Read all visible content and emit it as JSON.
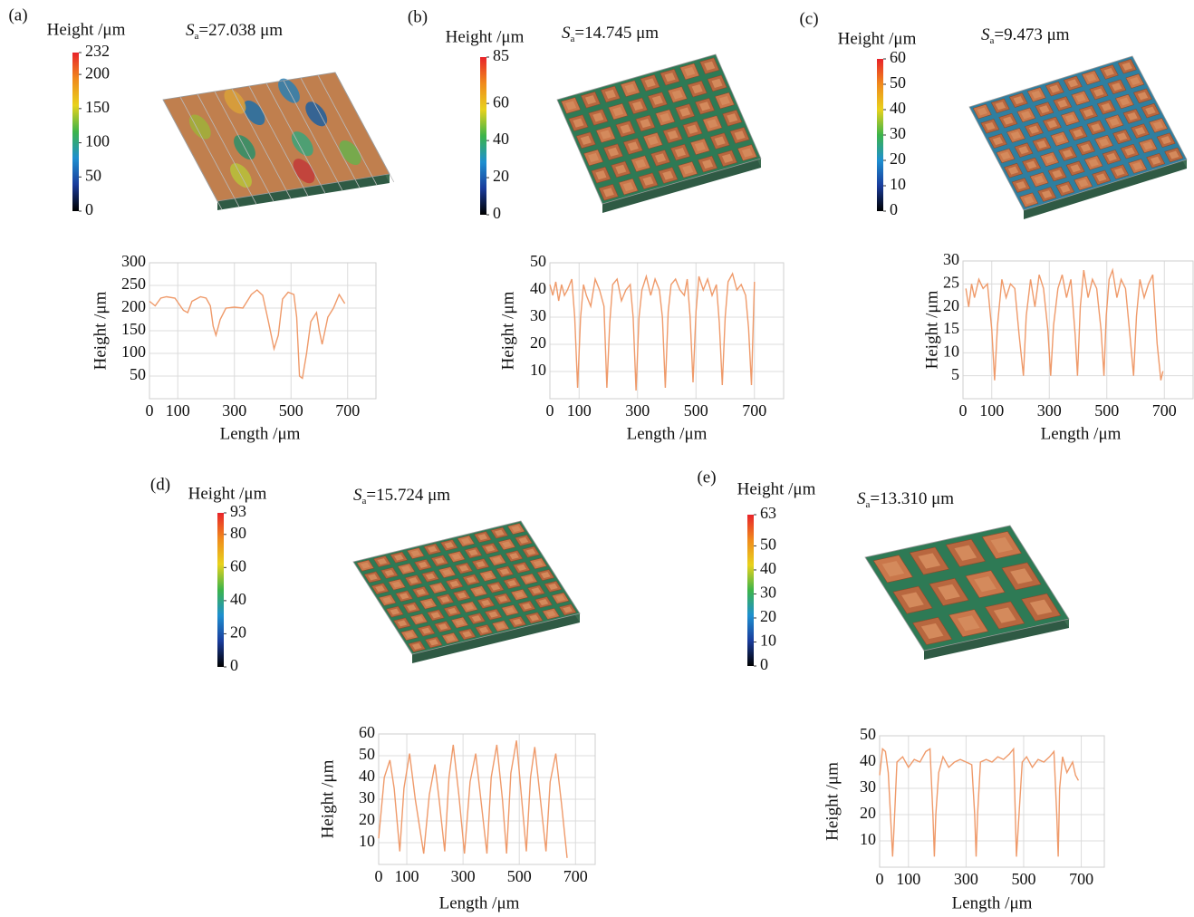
{
  "colormap": [
    "#000000",
    "#1a3c9c",
    "#1e8fd0",
    "#3cb44a",
    "#e8d21c",
    "#f08a1c",
    "#e8232a"
  ],
  "chart_data": [
    {
      "type": "line",
      "panel": "(a)",
      "surface_roughness": {
        "symbol": "S",
        "subscript": "a",
        "text": "=27.038 μm"
      },
      "colorbar": {
        "title": "Height /μm",
        "lim": [
          0,
          232
        ],
        "ticks": [
          0,
          50,
          100,
          150,
          200,
          232
        ]
      },
      "xlabel": "Length /μm",
      "ylabel": "Height /μm",
      "color": "#ef9a6a",
      "grid": true,
      "xlim": [
        0,
        800
      ],
      "ylim": [
        0,
        300
      ],
      "xticks": [
        0,
        100,
        300,
        500,
        700
      ],
      "yticks": [
        50,
        100,
        150,
        200,
        250,
        300
      ],
      "x": [
        0,
        20,
        40,
        60,
        90,
        120,
        135,
        150,
        180,
        200,
        215,
        225,
        235,
        250,
        270,
        300,
        330,
        360,
        380,
        400,
        420,
        440,
        455,
        470,
        490,
        510,
        520,
        530,
        540,
        555,
        570,
        590,
        600,
        610,
        630,
        650,
        670,
        690
      ],
      "values": [
        215,
        205,
        222,
        225,
        222,
        195,
        190,
        215,
        225,
        222,
        205,
        160,
        140,
        175,
        200,
        202,
        200,
        230,
        240,
        228,
        170,
        110,
        140,
        220,
        235,
        230,
        180,
        50,
        45,
        100,
        170,
        190,
        150,
        120,
        180,
        200,
        230,
        210
      ]
    },
    {
      "type": "line",
      "panel": "(b)",
      "surface_roughness": {
        "symbol": "S",
        "subscript": "a",
        "text": "=14.745 μm"
      },
      "colorbar": {
        "title": "Height /μm",
        "lim": [
          0,
          85
        ],
        "ticks": [
          0,
          20,
          40,
          60,
          85
        ]
      },
      "xlabel": "Length /μm",
      "ylabel": "Height /μm",
      "color": "#ef9a6a",
      "grid": true,
      "xlim": [
        0,
        800
      ],
      "ylim": [
        0,
        50
      ],
      "xticks": [
        0,
        100,
        300,
        500,
        700
      ],
      "yticks": [
        10,
        20,
        30,
        40,
        50
      ],
      "x": [
        0,
        10,
        20,
        30,
        40,
        50,
        60,
        75,
        85,
        95,
        105,
        115,
        125,
        140,
        155,
        170,
        185,
        195,
        205,
        215,
        230,
        245,
        260,
        275,
        285,
        295,
        305,
        315,
        330,
        345,
        360,
        375,
        385,
        395,
        405,
        415,
        430,
        445,
        460,
        470,
        480,
        490,
        500,
        510,
        525,
        540,
        555,
        570,
        580,
        590,
        600,
        610,
        625,
        640,
        655,
        670,
        680,
        690,
        700
      ],
      "values": [
        42,
        38,
        43,
        36,
        42,
        38,
        40,
        44,
        30,
        4,
        30,
        42,
        38,
        34,
        44,
        40,
        34,
        4,
        28,
        42,
        44,
        36,
        40,
        42,
        30,
        3,
        30,
        40,
        45,
        38,
        44,
        40,
        30,
        4,
        32,
        42,
        44,
        40,
        38,
        44,
        30,
        6,
        32,
        45,
        40,
        44,
        38,
        42,
        28,
        5,
        30,
        43,
        46,
        40,
        42,
        38,
        26,
        5,
        43
      ]
    },
    {
      "type": "line",
      "panel": "(c)",
      "surface_roughness": {
        "symbol": "S",
        "subscript": "a",
        "text": "=9.473 μm"
      },
      "colorbar": {
        "title": "Height /μm",
        "lim": [
          0,
          60
        ],
        "ticks": [
          0,
          10,
          20,
          30,
          40,
          50,
          60
        ]
      },
      "xlabel": "Length /μm",
      "ylabel": "Height /μm",
      "color": "#ef9a6a",
      "grid": true,
      "xlim": [
        0,
        800
      ],
      "ylim": [
        0,
        30
      ],
      "xticks": [
        0,
        100,
        300,
        500,
        700
      ],
      "yticks": [
        5,
        10,
        15,
        20,
        25,
        30
      ],
      "x": [
        10,
        20,
        30,
        40,
        55,
        70,
        85,
        100,
        110,
        120,
        135,
        150,
        165,
        180,
        195,
        210,
        220,
        235,
        250,
        265,
        280,
        295,
        305,
        315,
        330,
        345,
        360,
        375,
        390,
        398,
        408,
        420,
        435,
        450,
        465,
        480,
        490,
        498,
        508,
        520,
        535,
        550,
        565,
        580,
        593,
        603,
        615,
        630,
        645,
        660,
        675,
        688,
        695
      ],
      "values": [
        24,
        20,
        25,
        22,
        26,
        24,
        25,
        15,
        4,
        16,
        26,
        22,
        25,
        24,
        14,
        5,
        18,
        26,
        20,
        27,
        24,
        15,
        5,
        16,
        24,
        27,
        22,
        26,
        14,
        5,
        20,
        28,
        22,
        26,
        24,
        15,
        5,
        18,
        26,
        28,
        22,
        26,
        24,
        14,
        5,
        18,
        26,
        22,
        25,
        27,
        12,
        4,
        6
      ]
    },
    {
      "type": "line",
      "panel": "(d)",
      "surface_roughness": {
        "symbol": "S",
        "subscript": "a",
        "text": "=15.724 μm"
      },
      "colorbar": {
        "title": "Height /μm",
        "lim": [
          0,
          93
        ],
        "ticks": [
          0,
          20,
          40,
          60,
          80,
          93
        ]
      },
      "xlabel": "Length /μm",
      "ylabel": "Height /μm",
      "color": "#ef9a6a",
      "grid": true,
      "xlim": [
        0,
        770
      ],
      "ylim": [
        0,
        60
      ],
      "xticks": [
        0,
        100,
        300,
        500,
        700
      ],
      "yticks": [
        10,
        20,
        30,
        40,
        50,
        60
      ],
      "x": [
        0,
        20,
        40,
        55,
        75,
        90,
        110,
        130,
        160,
        180,
        200,
        215,
        235,
        250,
        265,
        285,
        305,
        325,
        345,
        365,
        385,
        400,
        420,
        440,
        455,
        470,
        490,
        510,
        525,
        540,
        555,
        575,
        595,
        610,
        630,
        650,
        670
      ],
      "values": [
        12,
        40,
        48,
        35,
        6,
        35,
        51,
        30,
        5,
        32,
        46,
        30,
        6,
        40,
        55,
        32,
        5,
        38,
        51,
        28,
        5,
        40,
        55,
        30,
        5,
        42,
        57,
        28,
        6,
        40,
        54,
        30,
        6,
        38,
        51,
        28,
        3
      ]
    },
    {
      "type": "line",
      "panel": "(e)",
      "surface_roughness": {
        "symbol": "S",
        "subscript": "a",
        "text": "=13.310 μm"
      },
      "colorbar": {
        "title": "Height /μm",
        "lim": [
          0,
          63
        ],
        "ticks": [
          0,
          10,
          20,
          30,
          40,
          50,
          63
        ]
      },
      "xlabel": "Length /μm",
      "ylabel": "Height /μm",
      "color": "#ef9a6a",
      "grid": true,
      "xlim": [
        0,
        780
      ],
      "ylim": [
        0,
        50
      ],
      "xticks": [
        0,
        100,
        300,
        500,
        700
      ],
      "yticks": [
        10,
        20,
        30,
        40,
        50
      ],
      "x": [
        0,
        10,
        20,
        30,
        40,
        45,
        50,
        60,
        80,
        100,
        120,
        140,
        160,
        175,
        185,
        190,
        195,
        205,
        220,
        240,
        260,
        280,
        300,
        320,
        330,
        335,
        340,
        350,
        370,
        390,
        410,
        430,
        450,
        465,
        475,
        485,
        495,
        510,
        530,
        550,
        570,
        590,
        605,
        615,
        620,
        625,
        635,
        650,
        670,
        680,
        690
      ],
      "values": [
        35,
        45,
        44,
        36,
        15,
        4,
        15,
        40,
        42,
        38,
        41,
        40,
        44,
        45,
        20,
        4,
        20,
        36,
        42,
        38,
        40,
        41,
        40,
        39,
        20,
        4,
        20,
        40,
        41,
        40,
        42,
        41,
        43,
        45,
        4,
        22,
        40,
        42,
        38,
        41,
        40,
        42,
        44,
        20,
        4,
        30,
        42,
        36,
        40,
        35,
        33
      ]
    }
  ]
}
